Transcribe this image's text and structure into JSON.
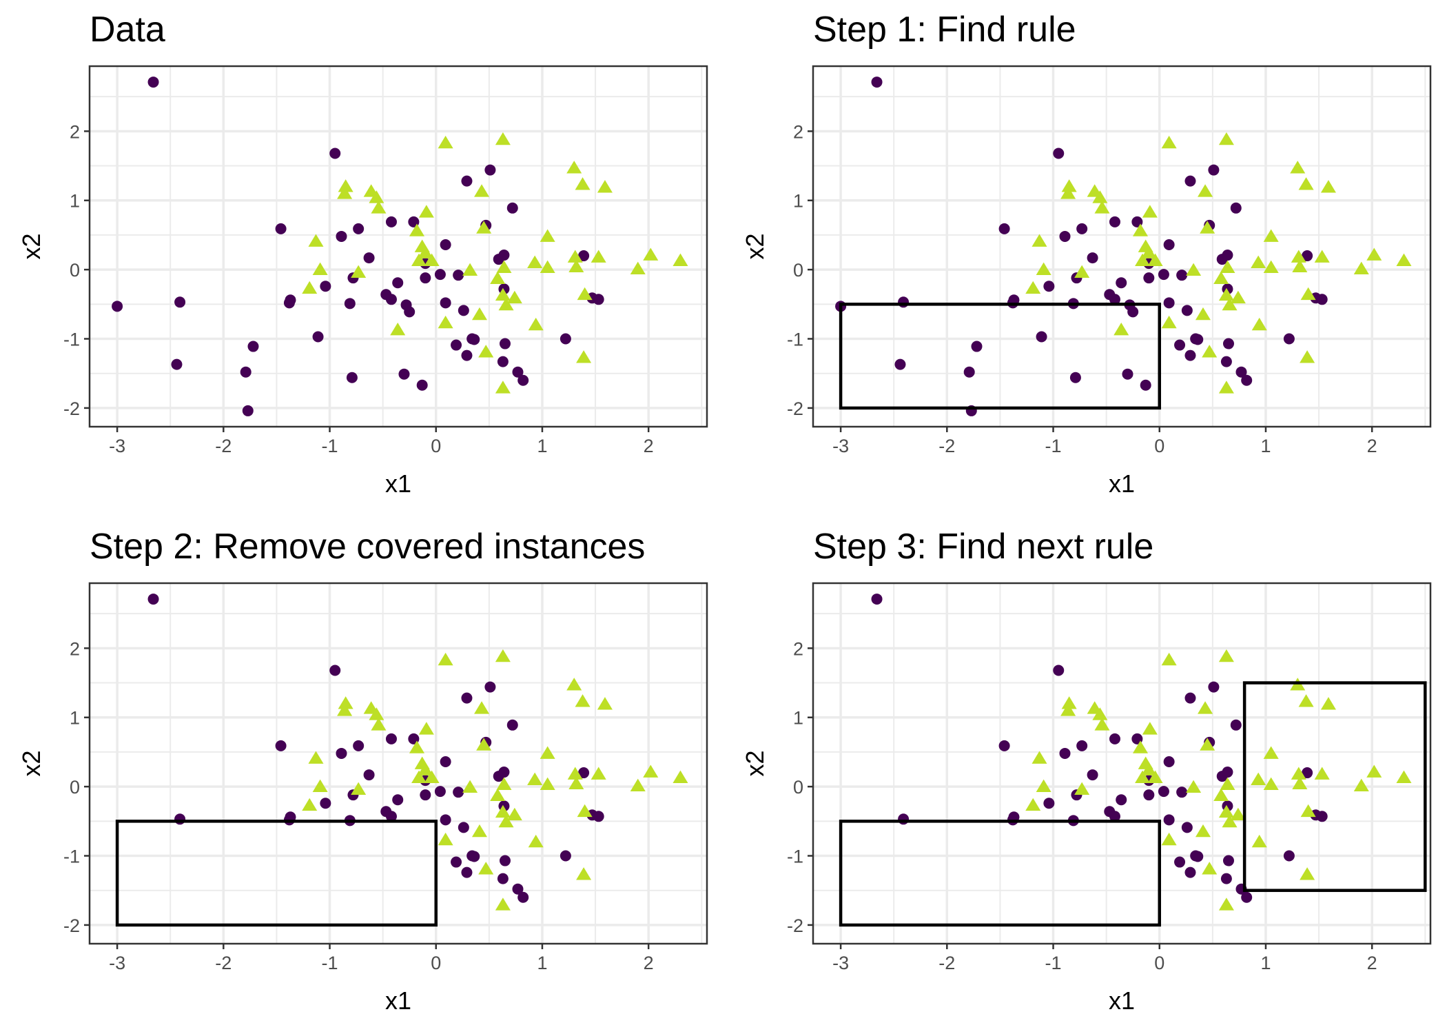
{
  "chart_data": {
    "type": "scatter",
    "xlabel": "x1",
    "ylabel": "x2",
    "xlim": [
      -3.26,
      2.55
    ],
    "ylim": [
      -2.27,
      2.94
    ],
    "xticks": [
      -3,
      -2,
      -1,
      0,
      1,
      2
    ],
    "yticks": [
      -2,
      -1,
      0,
      1,
      2
    ],
    "grid": true,
    "legend": "none",
    "colors": {
      "circle": "#440154",
      "triangle": "#bddf26"
    },
    "series": [
      {
        "shape": "circle",
        "color": "#440154",
        "points": [
          [
            -2.66,
            2.71
          ],
          [
            -3.0,
            -0.53
          ],
          [
            -2.41,
            -0.47
          ],
          [
            -2.44,
            -1.37
          ],
          [
            -1.72,
            -1.11
          ],
          [
            -1.79,
            -1.48
          ],
          [
            -1.77,
            -2.04
          ],
          [
            -1.46,
            0.59
          ],
          [
            -1.37,
            -0.44
          ],
          [
            -1.38,
            -0.48
          ],
          [
            -1.11,
            -0.97
          ],
          [
            -1.04,
            -0.24
          ],
          [
            -0.95,
            1.68
          ],
          [
            -0.89,
            0.48
          ],
          [
            -0.79,
            -1.56
          ],
          [
            -0.81,
            -0.49
          ],
          [
            -0.78,
            -0.12
          ],
          [
            -0.73,
            0.59
          ],
          [
            -0.63,
            0.17
          ],
          [
            -0.47,
            -0.36
          ],
          [
            -0.42,
            -0.43
          ],
          [
            -0.42,
            0.69
          ],
          [
            -0.36,
            -0.19
          ],
          [
            -0.3,
            -1.51
          ],
          [
            -0.28,
            -0.51
          ],
          [
            -0.25,
            -0.61
          ],
          [
            -0.21,
            0.69
          ],
          [
            -0.13,
            -1.67
          ],
          [
            -0.1,
            0.09
          ],
          [
            -0.1,
            -0.12
          ],
          [
            0.04,
            -0.07
          ],
          [
            0.09,
            0.36
          ],
          [
            0.09,
            -0.48
          ],
          [
            0.19,
            -1.09
          ],
          [
            0.21,
            -0.08
          ],
          [
            0.26,
            -0.59
          ],
          [
            0.29,
            -1.24
          ],
          [
            0.29,
            1.28
          ],
          [
            0.34,
            -1.0
          ],
          [
            0.36,
            -1.01
          ],
          [
            0.47,
            0.64
          ],
          [
            0.51,
            1.44
          ],
          [
            0.59,
            0.15
          ],
          [
            0.64,
            0.21
          ],
          [
            0.63,
            -1.33
          ],
          [
            0.64,
            -0.28
          ],
          [
            0.65,
            -1.07
          ],
          [
            0.72,
            0.89
          ],
          [
            0.77,
            -1.48
          ],
          [
            0.82,
            -1.6
          ],
          [
            1.22,
            -1.0
          ],
          [
            1.39,
            0.2
          ],
          [
            1.47,
            -0.41
          ],
          [
            1.53,
            -0.43
          ]
        ]
      },
      {
        "shape": "triangle",
        "color": "#bddf26",
        "points": [
          [
            0.09,
            1.83
          ],
          [
            0.63,
            1.88
          ],
          [
            -0.85,
            1.2
          ],
          [
            -0.86,
            1.1
          ],
          [
            -0.61,
            1.13
          ],
          [
            -0.56,
            1.04
          ],
          [
            -0.54,
            0.89
          ],
          [
            -1.13,
            0.41
          ],
          [
            -1.09,
            0.0
          ],
          [
            -1.19,
            -0.27
          ],
          [
            -0.73,
            -0.04
          ],
          [
            -0.36,
            -0.87
          ],
          [
            -0.09,
            0.83
          ],
          [
            -0.18,
            0.56
          ],
          [
            -0.13,
            0.33
          ],
          [
            -0.1,
            0.24
          ],
          [
            -0.16,
            0.13
          ],
          [
            -0.04,
            0.13
          ],
          [
            0.09,
            -0.77
          ],
          [
            0.32,
            -0.01
          ],
          [
            0.41,
            -0.65
          ],
          [
            0.43,
            1.13
          ],
          [
            0.45,
            0.6
          ],
          [
            0.47,
            -1.19
          ],
          [
            0.58,
            -0.13
          ],
          [
            0.64,
            0.03
          ],
          [
            0.63,
            -0.37
          ],
          [
            0.63,
            -1.71
          ],
          [
            0.66,
            -0.51
          ],
          [
            0.74,
            -0.41
          ],
          [
            1.05,
            0.03
          ],
          [
            1.05,
            0.48
          ],
          [
            0.93,
            0.1
          ],
          [
            0.94,
            -0.8
          ],
          [
            1.3,
            1.47
          ],
          [
            1.38,
            1.23
          ],
          [
            1.59,
            1.19
          ],
          [
            1.31,
            0.18
          ],
          [
            1.32,
            0.04
          ],
          [
            1.53,
            0.18
          ],
          [
            1.4,
            -0.36
          ],
          [
            1.39,
            -1.27
          ],
          [
            1.9,
            0.01
          ],
          [
            2.02,
            0.21
          ],
          [
            2.3,
            0.13
          ]
        ]
      }
    ],
    "panels": [
      {
        "title": "Data",
        "hide_covered": false,
        "rules": []
      },
      {
        "title": "Step 1: Find rule",
        "hide_covered": false,
        "rules": [
          {
            "x1": [
              -3,
              0
            ],
            "x2": [
              -2,
              -0.5
            ]
          }
        ]
      },
      {
        "title": "Step 2: Remove covered instances",
        "hide_covered": true,
        "rules": [
          {
            "x1": [
              -3,
              0
            ],
            "x2": [
              -2,
              -0.5
            ]
          }
        ]
      },
      {
        "title": "Step 3: Find next rule",
        "hide_covered": true,
        "rules": [
          {
            "x1": [
              -3,
              0
            ],
            "x2": [
              -2,
              -0.5
            ]
          },
          {
            "x1": [
              0.8,
              2.5
            ],
            "x2": [
              -1.5,
              1.5
            ]
          }
        ]
      }
    ]
  }
}
